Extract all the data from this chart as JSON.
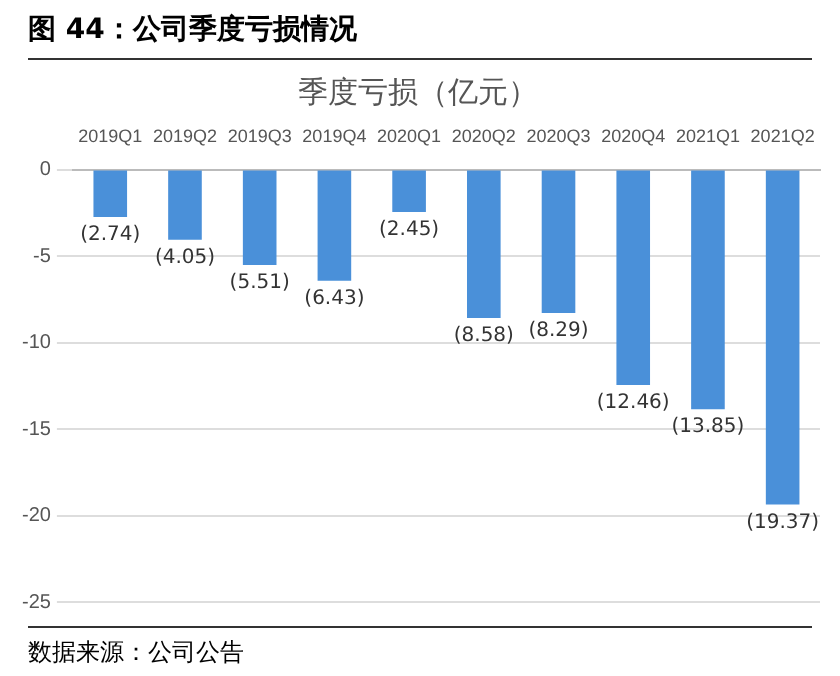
{
  "chart_data": {
    "type": "bar",
    "title": "图 44：公司季度亏损情况",
    "subtitle": "季度亏损（亿元）",
    "categories": [
      "2019Q1",
      "2019Q2",
      "2019Q3",
      "2019Q4",
      "2020Q1",
      "2020Q2",
      "2020Q3",
      "2020Q4",
      "2021Q1",
      "2021Q2"
    ],
    "values": [
      -2.74,
      -4.05,
      -5.51,
      -6.43,
      -2.45,
      -8.58,
      -8.29,
      -12.46,
      -13.85,
      -19.37
    ],
    "value_labels": [
      "(2.74)",
      "(4.05)",
      "(5.51)",
      "(6.43)",
      "(2.45)",
      "(8.58)",
      "(8.29)",
      "(12.46)",
      "(13.85)",
      "(19.37)"
    ],
    "color": "#4a90d9",
    "ylim": [
      -25,
      0
    ],
    "yticks": [
      0,
      -5,
      -10,
      -15,
      -20,
      -25
    ],
    "grid": "y",
    "annotations": [
      "数据来源：公司公告"
    ]
  }
}
